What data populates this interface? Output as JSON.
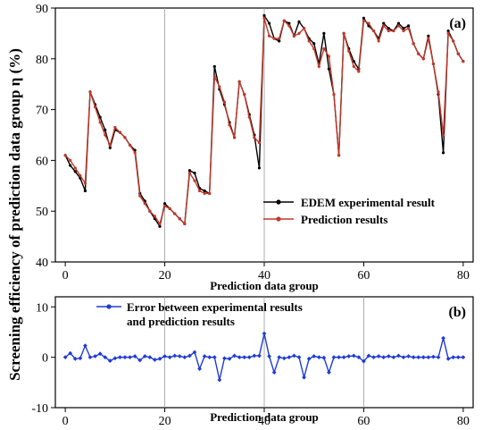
{
  "chart_data": [
    {
      "id": "a",
      "type": "line",
      "panel_label": "(a)",
      "xlabel": "Prediction data group",
      "ylabel": "Screening efficiency of prediction data group η (%)",
      "xlim": [
        -2,
        82
      ],
      "ylim": [
        40,
        90
      ],
      "x_ticks": [
        0,
        20,
        40,
        60,
        80
      ],
      "y_ticks": [
        40,
        50,
        60,
        70,
        80,
        90
      ],
      "vertical_gridlines": [
        20,
        40
      ],
      "legend_position": "center-right",
      "series": [
        {
          "name": "EDEM experimental result",
          "color": "#000000",
          "values": [
            61.0,
            59.0,
            57.8,
            56.5,
            54.0,
            73.5,
            71.0,
            68.5,
            66.0,
            62.5,
            66.0,
            65.5,
            64.5,
            63.0,
            62.0,
            53.5,
            52.0,
            50.0,
            48.5,
            47.0,
            51.5,
            50.5,
            49.5,
            48.5,
            47.5,
            58.0,
            57.5,
            54.5,
            54.0,
            53.5,
            78.5,
            74.0,
            71.0,
            67.5,
            64.5,
            75.5,
            73.0,
            69.0,
            65.0,
            58.5,
            88.5,
            87.0,
            84.0,
            83.5,
            87.5,
            87.0,
            84.5,
            87.3,
            86.0,
            84.0,
            83.0,
            79.0,
            85.0,
            78.0,
            73.0,
            61.0,
            85.0,
            82.0,
            79.5,
            78.0,
            88.0,
            86.5,
            85.5,
            84.0,
            87.0,
            86.0,
            85.5,
            87.0,
            86.0,
            86.5,
            83.0,
            81.0,
            80.0,
            84.5,
            79.0,
            73.0,
            61.5,
            85.5,
            83.5,
            81.0,
            79.5
          ]
        },
        {
          "name": "Prediction results",
          "color": "#c0392b",
          "values": [
            61.0,
            60.0,
            58.5,
            57.0,
            55.5,
            73.5,
            70.5,
            67.5,
            65.0,
            63.0,
            66.5,
            65.5,
            64.5,
            63.0,
            61.5,
            53.0,
            51.5,
            50.0,
            49.0,
            47.5,
            51.0,
            50.5,
            49.5,
            48.5,
            47.5,
            57.5,
            56.0,
            54.0,
            53.5,
            53.5,
            76.5,
            74.5,
            71.5,
            67.0,
            64.5,
            75.5,
            73.0,
            68.5,
            64.5,
            63.5,
            88.0,
            84.5,
            84.0,
            84.0,
            87.5,
            86.5,
            84.5,
            85.0,
            86.0,
            83.5,
            82.0,
            78.5,
            82.0,
            80.5,
            73.0,
            61.0,
            85.0,
            81.5,
            78.5,
            77.5,
            87.5,
            87.0,
            85.5,
            83.5,
            86.5,
            85.5,
            85.5,
            86.5,
            85.5,
            86.0,
            83.0,
            81.0,
            80.0,
            84.0,
            79.0,
            73.5,
            65.0,
            85.0,
            83.5,
            81.0,
            79.5
          ]
        }
      ]
    },
    {
      "id": "b",
      "type": "line",
      "panel_label": "(b)",
      "xlabel": "Prediction data group",
      "xlim": [
        -2,
        82
      ],
      "ylim": [
        -10,
        12
      ],
      "x_ticks": [
        0,
        20,
        40,
        60,
        80
      ],
      "y_ticks": [
        -10,
        0,
        10
      ],
      "vertical_gridlines": [
        20,
        40,
        60
      ],
      "legend_position": "top-left",
      "series": [
        {
          "name": "Error between experimental results\nand prediction results",
          "color": "#1f3bd6",
          "values": [
            0.0,
            0.8,
            -0.3,
            -0.2,
            2.3,
            0.0,
            0.2,
            0.7,
            0.0,
            -0.7,
            -0.2,
            0.0,
            0.0,
            0.0,
            0.2,
            -0.6,
            0.2,
            0.0,
            -0.5,
            -0.3,
            0.2,
            0.0,
            0.3,
            0.2,
            0.0,
            0.3,
            1.0,
            -2.3,
            0.2,
            0.0,
            0.0,
            -4.5,
            -0.2,
            -0.3,
            0.3,
            0.0,
            0.0,
            0.0,
            0.3,
            0.3,
            4.7,
            0.2,
            -3.0,
            0.0,
            -0.2,
            0.0,
            0.3,
            0.0,
            -4.0,
            -0.3,
            0.2,
            0.0,
            -0.1,
            -3.0,
            0.0,
            0.0,
            0.0,
            0.2,
            0.3,
            0.0,
            -0.8,
            0.3,
            0.0,
            0.2,
            0.0,
            0.2,
            0.0,
            0.3,
            0.0,
            0.2,
            0.0,
            0.0,
            0.0,
            0.0,
            0.1,
            0.0,
            3.8,
            -0.3,
            0.0,
            0.0,
            0.0
          ]
        }
      ]
    }
  ]
}
